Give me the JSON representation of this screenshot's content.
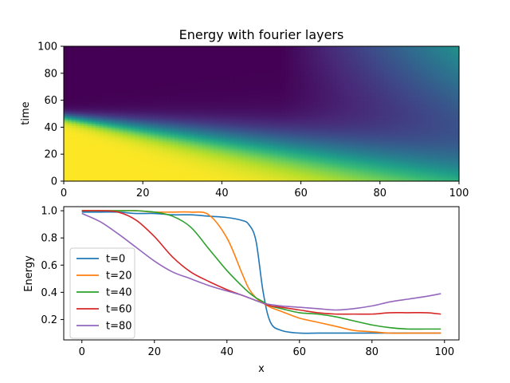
{
  "chart_data": [
    {
      "type": "heatmap",
      "title": "Energy with fourier layers",
      "xlabel": "x",
      "ylabel": "time",
      "xlim": [
        0,
        100
      ],
      "ylim": [
        0,
        100
      ],
      "xticks": [
        "0",
        "20",
        "40",
        "60",
        "80",
        "100"
      ],
      "yticks": [
        "0",
        "20",
        "40",
        "60",
        "80",
        "100"
      ],
      "colormap": "viridis",
      "value_range": [
        0.1,
        1.0
      ],
      "description_of_field": {
        "x_points": [
          0,
          10,
          20,
          30,
          40,
          50,
          60,
          70,
          80,
          90,
          100
        ],
        "front_time_at_x": [
          48,
          44,
          40,
          36,
          32,
          28,
          24,
          20,
          16,
          12,
          8
        ],
        "low_region_value": 0.1,
        "high_region_value": 1.0,
        "corner_top_right_value": 0.5
      }
    },
    {
      "type": "line",
      "xlabel": "x",
      "ylabel": "Energy",
      "xlim": [
        -5,
        104
      ],
      "ylim": [
        0.05,
        1.03
      ],
      "xticks": [
        "0",
        "20",
        "40",
        "60",
        "80",
        "100"
      ],
      "yticks": [
        "0.2",
        "0.4",
        "0.6",
        "0.8",
        "1.0"
      ],
      "legend_position": "center-left",
      "x": [
        0,
        5,
        10,
        15,
        20,
        25,
        30,
        35,
        40,
        44,
        46,
        48,
        50,
        52,
        55,
        60,
        65,
        70,
        75,
        80,
        85,
        90,
        95,
        99
      ],
      "series": [
        {
          "name": "t=0",
          "color": "#1f77b4",
          "values": [
            0.99,
            0.99,
            0.99,
            0.98,
            0.98,
            0.97,
            0.97,
            0.96,
            0.95,
            0.93,
            0.9,
            0.78,
            0.4,
            0.18,
            0.12,
            0.1,
            0.1,
            0.1,
            0.1,
            0.1,
            0.1,
            0.1,
            0.1,
            0.1
          ]
        },
        {
          "name": "t=20",
          "color": "#ff7f0e",
          "values": [
            1.0,
            1.0,
            1.0,
            1.0,
            0.99,
            0.99,
            0.99,
            0.97,
            0.8,
            0.55,
            0.43,
            0.36,
            0.32,
            0.29,
            0.26,
            0.21,
            0.18,
            0.15,
            0.12,
            0.11,
            0.1,
            0.1,
            0.1,
            0.1
          ]
        },
        {
          "name": "t=40",
          "color": "#2ca02c",
          "values": [
            1.0,
            1.0,
            1.0,
            1.0,
            0.99,
            0.96,
            0.88,
            0.72,
            0.56,
            0.45,
            0.4,
            0.36,
            0.33,
            0.3,
            0.28,
            0.25,
            0.24,
            0.22,
            0.19,
            0.16,
            0.14,
            0.13,
            0.13,
            0.13
          ]
        },
        {
          "name": "t=60",
          "color": "#d62728",
          "values": [
            1.0,
            1.0,
            0.99,
            0.93,
            0.81,
            0.66,
            0.55,
            0.48,
            0.42,
            0.38,
            0.36,
            0.34,
            0.32,
            0.3,
            0.29,
            0.27,
            0.25,
            0.24,
            0.24,
            0.24,
            0.25,
            0.25,
            0.25,
            0.24
          ]
        },
        {
          "name": "t=80",
          "color": "#9467bd",
          "values": [
            0.98,
            0.92,
            0.83,
            0.73,
            0.63,
            0.55,
            0.5,
            0.45,
            0.41,
            0.38,
            0.36,
            0.34,
            0.32,
            0.31,
            0.3,
            0.29,
            0.28,
            0.27,
            0.28,
            0.3,
            0.33,
            0.35,
            0.37,
            0.39
          ]
        }
      ]
    }
  ]
}
